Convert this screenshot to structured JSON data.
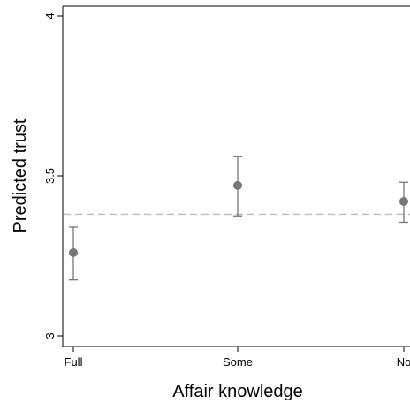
{
  "chart_data": {
    "type": "scatter",
    "title": "",
    "xlabel": "Affair knowledge",
    "ylabel": "Predicted trust",
    "categories": [
      "Full",
      "Some",
      "No"
    ],
    "series": [
      {
        "values": [
          3.26,
          3.47,
          3.42
        ],
        "ci_low": [
          3.175,
          3.375,
          3.355
        ],
        "ci_high": [
          3.34,
          3.56,
          3.48
        ],
        "color": "#777777"
      }
    ],
    "reference_line": {
      "y": 3.38,
      "style": "dashed",
      "color": "#bbbbbb"
    },
    "ylim": [
      2.99,
      4.0
    ],
    "yticks": [
      3,
      3.5,
      4
    ],
    "ytick_labels": [
      "3",
      "3.5",
      "4"
    ],
    "grid": false,
    "legend": "none"
  }
}
